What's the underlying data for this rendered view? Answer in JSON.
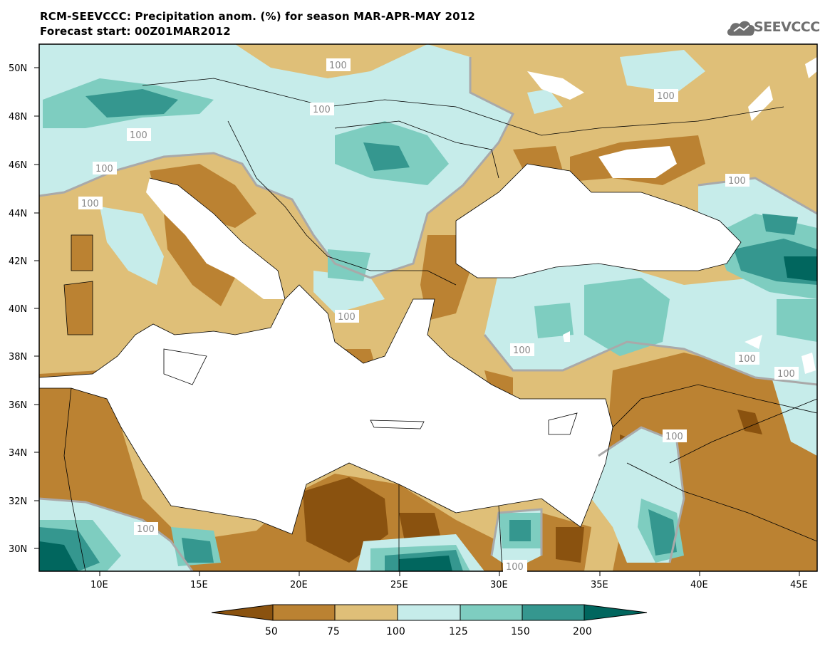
{
  "header": {
    "title_line1": "RCM-SEEVCCC: Precipitation anom. (%) for season MAR-APR-MAY 2012",
    "title_line2": "Forecast start: 00Z01MAR2012"
  },
  "logo": {
    "text": "SEEVCCC",
    "icon": "cloud-logo-icon"
  },
  "map": {
    "lon_labels": [
      "10E",
      "15E",
      "20E",
      "25E",
      "30E",
      "35E",
      "40E",
      "45E"
    ],
    "lat_labels": [
      "50N",
      "48N",
      "46N",
      "44N",
      "42N",
      "40N",
      "38N",
      "36N",
      "34N",
      "32N",
      "30N"
    ],
    "contour_label": "100"
  },
  "colorbar": {
    "colors": [
      "#8a520f",
      "#bb8232",
      "#dfbf78",
      "#c6ecea",
      "#7ecdc0",
      "#35978f",
      "#01665e"
    ],
    "tick_labels": [
      "50",
      "75",
      "100",
      "125",
      "150",
      "200"
    ]
  }
}
